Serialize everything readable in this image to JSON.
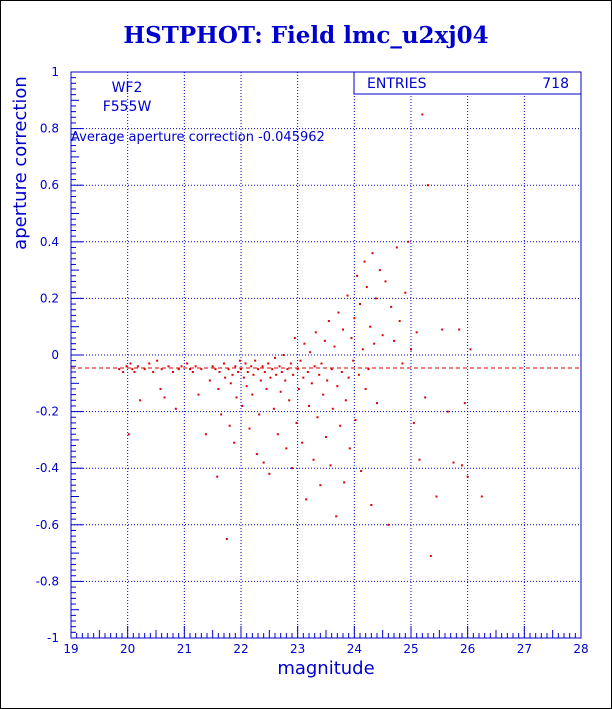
{
  "chart_data": {
    "type": "scatter",
    "title": "HSTPHOT: Field lmc_u2xj04",
    "xlabel": "magnitude",
    "ylabel": "aperture correction",
    "xlim": [
      19,
      28
    ],
    "ylim": [
      -1,
      1
    ],
    "xticks": [
      "19",
      "20",
      "21",
      "22",
      "23",
      "24",
      "25",
      "26",
      "27",
      "28"
    ],
    "yticks": [
      "-1",
      "-0.8",
      "-0.6",
      "-0.4",
      "-0.2",
      "0",
      "0.2",
      "0.4",
      "0.6",
      "0.8",
      "1"
    ],
    "grid": true,
    "labels": {
      "camera": "WF2",
      "filter": "F555W",
      "average": "Average aperture correction -0.045962"
    },
    "stats": {
      "entries_label": "ENTRIES",
      "entries_value": "718"
    },
    "reference_line": {
      "y": -0.046,
      "style": "dashed"
    },
    "colors": {
      "axes": "#0000cc",
      "points": "#dd0000",
      "grid": "#0000cc",
      "background": "#ffffff"
    },
    "points": [
      [
        19.85,
        -0.05
      ],
      [
        19.92,
        -0.06
      ],
      [
        19.98,
        -0.04
      ],
      [
        20.02,
        -0.28
      ],
      [
        20.05,
        -0.03
      ],
      [
        20.08,
        -0.05
      ],
      [
        20.12,
        -0.06
      ],
      [
        20.18,
        -0.04
      ],
      [
        20.22,
        -0.16
      ],
      [
        20.3,
        -0.05
      ],
      [
        20.38,
        -0.03
      ],
      [
        20.45,
        -0.06
      ],
      [
        20.52,
        -0.02
      ],
      [
        20.58,
        -0.12
      ],
      [
        20.6,
        -0.05
      ],
      [
        20.65,
        -0.15
      ],
      [
        20.72,
        -0.04
      ],
      [
        20.8,
        -0.06
      ],
      [
        20.85,
        -0.19
      ],
      [
        20.9,
        -0.05
      ],
      [
        20.95,
        -0.04
      ],
      [
        21.05,
        -0.03
      ],
      [
        21.1,
        -0.05
      ],
      [
        21.15,
        -0.06
      ],
      [
        21.2,
        -0.04
      ],
      [
        21.25,
        -0.14
      ],
      [
        21.3,
        -0.05
      ],
      [
        21.38,
        -0.28
      ],
      [
        21.45,
        -0.09
      ],
      [
        21.5,
        -0.04
      ],
      [
        21.55,
        -0.05
      ],
      [
        21.58,
        -0.43
      ],
      [
        21.6,
        -0.12
      ],
      [
        21.62,
        -0.06
      ],
      [
        21.65,
        -0.21
      ],
      [
        21.7,
        -0.03
      ],
      [
        21.72,
        -0.08
      ],
      [
        21.75,
        -0.65
      ],
      [
        21.78,
        -0.05
      ],
      [
        21.8,
        -0.25
      ],
      [
        21.82,
        -0.1
      ],
      [
        21.85,
        -0.07
      ],
      [
        21.88,
        -0.31
      ],
      [
        21.9,
        -0.04
      ],
      [
        21.92,
        -0.15
      ],
      [
        21.95,
        -0.06
      ],
      [
        21.98,
        -0.02
      ],
      [
        22.0,
        -0.05
      ],
      [
        22.02,
        -0.18
      ],
      [
        22.05,
        -0.08
      ],
      [
        22.08,
        -0.03
      ],
      [
        22.1,
        -0.11
      ],
      [
        22.12,
        -0.06
      ],
      [
        22.15,
        -0.26
      ],
      [
        22.18,
        -0.04
      ],
      [
        22.2,
        -0.14
      ],
      [
        22.22,
        -0.07
      ],
      [
        22.25,
        -0.02
      ],
      [
        22.28,
        -0.35
      ],
      [
        22.3,
        -0.05
      ],
      [
        22.32,
        -0.21
      ],
      [
        22.35,
        -0.09
      ],
      [
        22.38,
        -0.04
      ],
      [
        22.4,
        -0.38
      ],
      [
        22.42,
        -0.06
      ],
      [
        22.45,
        -0.12
      ],
      [
        22.48,
        -0.03
      ],
      [
        22.5,
        -0.42
      ],
      [
        22.52,
        -0.08
      ],
      [
        22.55,
        -0.05
      ],
      [
        22.58,
        -0.19
      ],
      [
        22.6,
        -0.01
      ],
      [
        22.62,
        -0.07
      ],
      [
        22.65,
        -0.28
      ],
      [
        22.68,
        -0.04
      ],
      [
        22.7,
        -0.13
      ],
      [
        22.72,
        -0.06
      ],
      [
        22.75,
        0.0
      ],
      [
        22.78,
        -0.09
      ],
      [
        22.8,
        -0.33
      ],
      [
        22.82,
        -0.05
      ],
      [
        22.85,
        -0.16
      ],
      [
        22.88,
        -0.03
      ],
      [
        22.9,
        -0.4
      ],
      [
        22.92,
        -0.07
      ],
      [
        22.95,
        0.06
      ],
      [
        22.98,
        -0.24
      ],
      [
        23.0,
        -0.05
      ],
      [
        23.02,
        -0.12
      ],
      [
        23.05,
        -0.02
      ],
      [
        23.08,
        -0.31
      ],
      [
        23.1,
        -0.08
      ],
      [
        23.12,
        0.04
      ],
      [
        23.15,
        -0.51
      ],
      [
        23.18,
        -0.06
      ],
      [
        23.2,
        -0.18
      ],
      [
        23.22,
        0.01
      ],
      [
        23.25,
        -0.1
      ],
      [
        23.28,
        -0.37
      ],
      [
        23.3,
        -0.04
      ],
      [
        23.32,
        0.08
      ],
      [
        23.35,
        -0.22
      ],
      [
        23.38,
        -0.07
      ],
      [
        23.4,
        -0.46
      ],
      [
        23.42,
        -0.03
      ],
      [
        23.45,
        -0.14
      ],
      [
        23.48,
        0.05
      ],
      [
        23.5,
        -0.29
      ],
      [
        23.52,
        -0.09
      ],
      [
        23.55,
        0.12
      ],
      [
        23.58,
        -0.39
      ],
      [
        23.6,
        -0.05
      ],
      [
        23.62,
        -0.19
      ],
      [
        23.65,
        0.03
      ],
      [
        23.68,
        -0.57
      ],
      [
        23.7,
        -0.11
      ],
      [
        23.72,
        0.15
      ],
      [
        23.75,
        -0.25
      ],
      [
        23.78,
        -0.06
      ],
      [
        23.8,
        0.09
      ],
      [
        23.82,
        -0.45
      ],
      [
        23.85,
        -0.16
      ],
      [
        23.88,
        0.21
      ],
      [
        23.9,
        -0.08
      ],
      [
        23.92,
        -0.33
      ],
      [
        23.95,
        0.06
      ],
      [
        23.98,
        -0.02
      ],
      [
        24.0,
        0.13
      ],
      [
        24.02,
        -0.23
      ],
      [
        24.05,
        0.28
      ],
      [
        24.08,
        -0.07
      ],
      [
        24.1,
        0.18
      ],
      [
        24.12,
        -0.41
      ],
      [
        24.15,
        0.02
      ],
      [
        24.18,
        0.33
      ],
      [
        24.2,
        -0.12
      ],
      [
        24.22,
        0.24
      ],
      [
        24.25,
        -0.05
      ],
      [
        24.28,
        0.1
      ],
      [
        24.3,
        -0.53
      ],
      [
        24.32,
        0.36
      ],
      [
        24.35,
        0.04
      ],
      [
        24.38,
        0.2
      ],
      [
        24.4,
        -0.17
      ],
      [
        24.45,
        0.3
      ],
      [
        24.5,
        0.07
      ],
      [
        24.55,
        0.26
      ],
      [
        24.6,
        -0.6
      ],
      [
        24.65,
        0.17
      ],
      [
        24.7,
        0.05
      ],
      [
        24.75,
        0.38
      ],
      [
        24.8,
        0.12
      ],
      [
        24.85,
        -0.03
      ],
      [
        24.9,
        0.22
      ],
      [
        24.95,
        0.4
      ],
      [
        25.0,
        0.02
      ],
      [
        25.05,
        -0.24
      ],
      [
        25.1,
        0.08
      ],
      [
        25.15,
        -0.37
      ],
      [
        25.2,
        0.85
      ],
      [
        25.25,
        -0.15
      ],
      [
        25.3,
        0.6
      ],
      [
        25.35,
        -0.71
      ],
      [
        25.45,
        -0.5
      ],
      [
        25.55,
        0.09
      ],
      [
        25.65,
        -0.2
      ],
      [
        25.75,
        -0.38
      ],
      [
        25.85,
        0.09
      ],
      [
        25.9,
        -0.39
      ],
      [
        25.95,
        -0.17
      ],
      [
        26.0,
        -0.43
      ],
      [
        26.05,
        0.02
      ],
      [
        26.25,
        -0.5
      ]
    ]
  }
}
